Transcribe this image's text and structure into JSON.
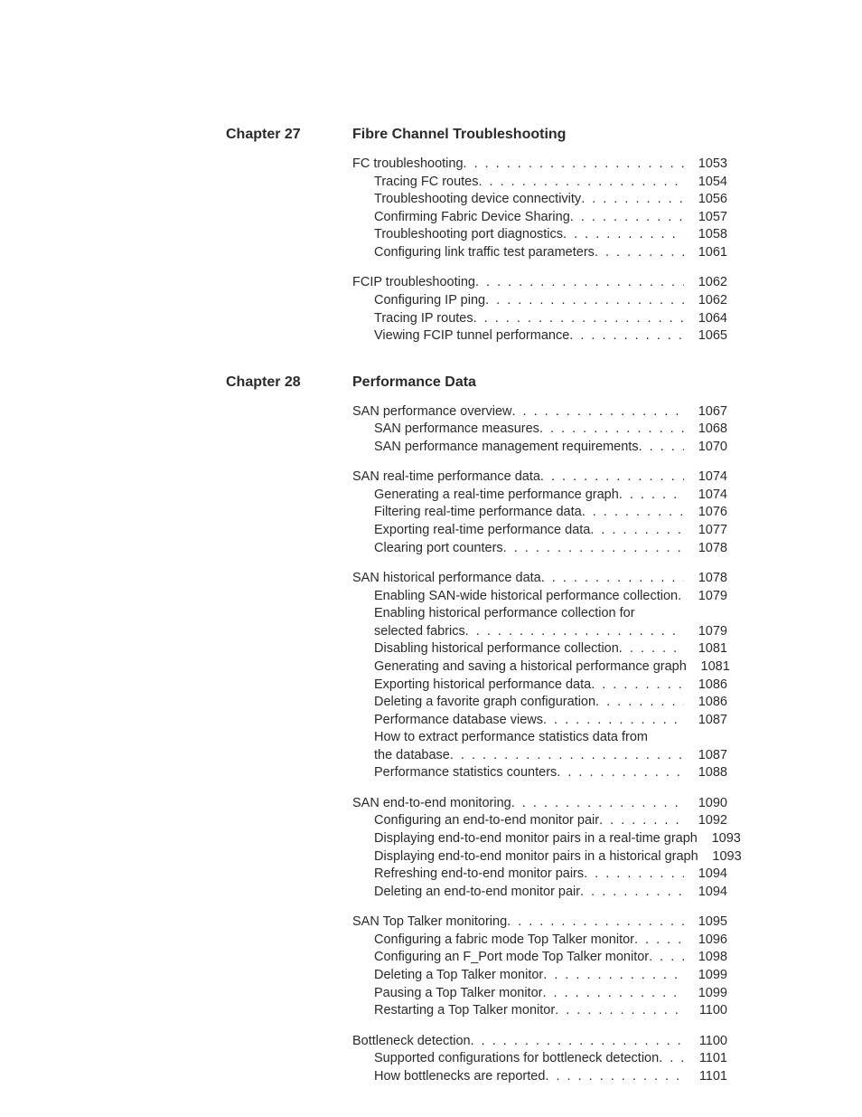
{
  "chapters": [
    {
      "label": "Chapter 27",
      "title": "Fibre Channel Troubleshooting",
      "sections": [
        {
          "entries": [
            {
              "title": "FC troubleshooting",
              "page": "1053",
              "sub": false
            },
            {
              "title": "Tracing FC routes",
              "page": "1054",
              "sub": true
            },
            {
              "title": "Troubleshooting device connectivity",
              "page": "1056",
              "sub": true
            },
            {
              "title": "Confirming Fabric Device Sharing",
              "page": "1057",
              "sub": true
            },
            {
              "title": "Troubleshooting port diagnostics",
              "page": "1058",
              "sub": true
            },
            {
              "title": "Configuring link traffic test parameters",
              "page": "1061",
              "sub": true
            }
          ]
        },
        {
          "entries": [
            {
              "title": "FCIP troubleshooting",
              "page": "1062",
              "sub": false
            },
            {
              "title": "Configuring IP ping",
              "page": "1062",
              "sub": true
            },
            {
              "title": "Tracing IP routes",
              "page": "1064",
              "sub": true
            },
            {
              "title": "Viewing FCIP tunnel performance",
              "page": "1065",
              "sub": true
            }
          ]
        }
      ]
    },
    {
      "label": "Chapter 28",
      "title": "Performance Data",
      "sections": [
        {
          "entries": [
            {
              "title": "SAN performance overview",
              "page": "1067",
              "sub": false
            },
            {
              "title": "SAN performance measures",
              "page": "1068",
              "sub": true
            },
            {
              "title": "SAN performance management requirements",
              "page": "1070",
              "sub": true
            }
          ]
        },
        {
          "entries": [
            {
              "title": "SAN real-time performance data",
              "page": "1074",
              "sub": false
            },
            {
              "title": "Generating a real-time performance graph",
              "page": "1074",
              "sub": true
            },
            {
              "title": "Filtering real-time performance data",
              "page": "1076",
              "sub": true
            },
            {
              "title": "Exporting real-time performance data",
              "page": "1077",
              "sub": true
            },
            {
              "title": "Clearing port counters",
              "page": "1078",
              "sub": true
            }
          ]
        },
        {
          "entries": [
            {
              "title": "SAN historical performance data",
              "page": "1078",
              "sub": false
            },
            {
              "title": "Enabling SAN-wide historical performance collection",
              "page": "1079",
              "sub": true
            },
            {
              "title": "Enabling historical performance collection for",
              "cont": true,
              "sub": true
            },
            {
              "title": "selected fabrics",
              "page": "1079",
              "sub": true
            },
            {
              "title": "Disabling historical performance collection",
              "page": "1081",
              "sub": true
            },
            {
              "title": "Generating and saving a historical performance graph",
              "page": "1081",
              "sub": true
            },
            {
              "title": "Exporting historical performance data",
              "page": "1086",
              "sub": true
            },
            {
              "title": "Deleting a favorite graph configuration",
              "page": "1086",
              "sub": true
            },
            {
              "title": "Performance database views",
              "page": "1087",
              "sub": true
            },
            {
              "title": "How to extract performance statistics data from",
              "cont": true,
              "sub": true
            },
            {
              "title": "the database",
              "page": "1087",
              "sub": true
            },
            {
              "title": "Performance statistics counters",
              "page": "1088",
              "sub": true
            }
          ]
        },
        {
          "entries": [
            {
              "title": "SAN end-to-end monitoring",
              "page": "1090",
              "sub": false
            },
            {
              "title": "Configuring an end-to-end monitor pair",
              "page": "1092",
              "sub": true
            },
            {
              "title": "Displaying end-to-end monitor pairs in a real-time graph",
              "page": "1093",
              "sub": true
            },
            {
              "title": "Displaying end-to-end monitor pairs in a historical graph",
              "page": "1093",
              "sub": true
            },
            {
              "title": "Refreshing end-to-end monitor pairs",
              "page": "1094",
              "sub": true
            },
            {
              "title": "Deleting an end-to-end monitor pair",
              "page": "1094",
              "sub": true
            }
          ]
        },
        {
          "entries": [
            {
              "title": "SAN Top Talker monitoring",
              "page": "1095",
              "sub": false
            },
            {
              "title": "Configuring a fabric mode Top Talker monitor",
              "page": "1096",
              "sub": true
            },
            {
              "title": "Configuring an F_Port mode Top Talker monitor",
              "page": "1098",
              "sub": true
            },
            {
              "title": "Deleting a Top Talker monitor",
              "page": "1099",
              "sub": true
            },
            {
              "title": "Pausing a Top Talker monitor",
              "page": "1099",
              "sub": true
            },
            {
              "title": "Restarting a Top Talker monitor",
              "page": "1100",
              "sub": true
            }
          ]
        },
        {
          "entries": [
            {
              "title": "Bottleneck detection",
              "page": "1100",
              "sub": false
            },
            {
              "title": "Supported configurations for bottleneck detection",
              "page": "1101",
              "sub": true
            },
            {
              "title": "How bottlenecks are reported",
              "page": "1101",
              "sub": true
            }
          ]
        }
      ]
    }
  ]
}
